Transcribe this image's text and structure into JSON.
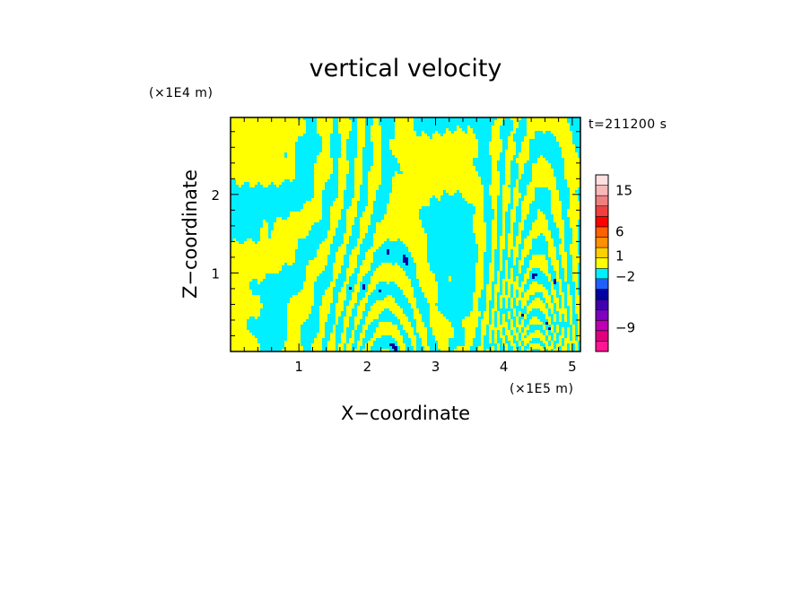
{
  "chart_data": {
    "type": "heatmap",
    "title": "vertical velocity",
    "xlabel": "X−coordinate",
    "ylabel": "Z−coordinate",
    "x_unit": "(×1E5 m)",
    "y_unit": "(×1E4 m)",
    "time_label": "t=211200 s",
    "xlim": [
      0,
      5.12
    ],
    "ylim": [
      0,
      2.98
    ],
    "x_ticks": [
      {
        "value": 1,
        "label": "1"
      },
      {
        "value": 2,
        "label": "2"
      },
      {
        "value": 3,
        "label": "3"
      },
      {
        "value": 4,
        "label": "4"
      },
      {
        "value": 5,
        "label": "5"
      }
    ],
    "y_ticks": [
      {
        "value": 1,
        "label": "1"
      },
      {
        "value": 2,
        "label": "2"
      }
    ],
    "colorbar": {
      "levels": [
        {
          "color": "#ff1493"
        },
        {
          "color": "#e0007e"
        },
        {
          "color": "#c000b0"
        },
        {
          "color": "#8000c0"
        },
        {
          "color": "#4000b0"
        },
        {
          "color": "#0000a0"
        },
        {
          "color": "#1f5fff"
        },
        {
          "color": "#00f0ff"
        },
        {
          "color": "#ffff00"
        },
        {
          "color": "#ffd000"
        },
        {
          "color": "#ff9000"
        },
        {
          "color": "#ff6000"
        },
        {
          "color": "#ff0000"
        },
        {
          "color": "#f04040"
        },
        {
          "color": "#f08080"
        },
        {
          "color": "#f8b8b8"
        },
        {
          "color": "#fde0e0"
        }
      ],
      "labels": [
        {
          "text": "15",
          "level": 15.5
        },
        {
          "text": "6",
          "level": 11.5
        },
        {
          "text": "1",
          "level": 9.2
        },
        {
          "text": "−2",
          "level": 7.2
        },
        {
          "text": "−9",
          "level": 2.3
        }
      ]
    },
    "field_colors": {
      "positive": "#ffff00",
      "negative": "#00f0ff",
      "strong_negative": "#0000a0"
    }
  }
}
